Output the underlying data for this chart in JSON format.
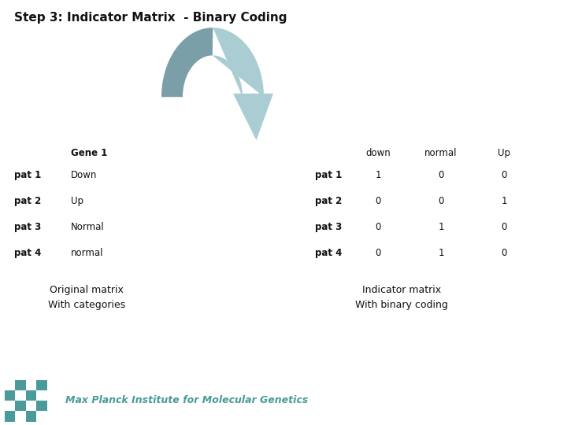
{
  "title": "Step 3: Indicator Matrix  - Binary Coding",
  "title_fontsize": 11,
  "title_fontweight": "bold",
  "bg_color": "#ffffff",
  "footer_bg_color": "#dce8e8",
  "footer_text": "Max Planck Institute for Molecular Genetics",
  "footer_color": "#4a9a9a",
  "left_header": "Gene 1",
  "left_table_rows": [
    [
      "pat 1",
      "Down"
    ],
    [
      "pat 2",
      "Up"
    ],
    [
      "pat 3",
      "Normal"
    ],
    [
      "pat 4",
      "normal"
    ]
  ],
  "right_table_headers": [
    "down",
    "normal",
    "Up"
  ],
  "right_table_rows": [
    [
      "pat 1",
      1,
      0,
      0
    ],
    [
      "pat 2",
      0,
      0,
      1
    ],
    [
      "pat 3",
      0,
      1,
      0
    ],
    [
      "pat 4",
      0,
      1,
      0
    ]
  ],
  "label_original": "Original matrix\nWith categories",
  "label_indicator": "Indicator matrix\nWith binary coding",
  "arrow_color_left": "#7a9fa8",
  "arrow_color_right": "#aacdd4",
  "text_fontsize": 8.5
}
